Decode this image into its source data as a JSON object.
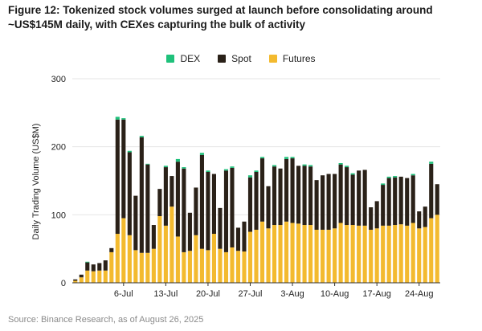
{
  "title": "Figure 12: Tokenized stock volumes surged at launch before consolidating around ~US$145M daily, with CEXes capturing the bulk of activity",
  "source": "Source: Binance Research, as of August 26, 2025",
  "colors": {
    "dex": "#1fc17b",
    "spot": "#2a2118",
    "futures": "#f3ba2f",
    "grid": "#e6e6e6",
    "axis": "#333333"
  },
  "chart_data": {
    "type": "bar",
    "stacked": true,
    "ylabel": "Daily Trading Volume (US$M)",
    "xlabel": "",
    "ylim": [
      0,
      300
    ],
    "yticks": [
      "0",
      "100",
      "200",
      "300"
    ],
    "legend": [
      "DEX",
      "Spot",
      "Futures"
    ],
    "legend_position": "top-center",
    "x_tick_labels": [
      {
        "label": "6-Jul",
        "index": 8
      },
      {
        "label": "13-Jul",
        "index": 15
      },
      {
        "label": "20-Jul",
        "index": 22
      },
      {
        "label": "27-Jul",
        "index": 29
      },
      {
        "label": "3-Aug",
        "index": 36
      },
      {
        "label": "10-Aug",
        "index": 43
      },
      {
        "label": "17-Aug",
        "index": 50
      },
      {
        "label": "24-Aug",
        "index": 57
      }
    ],
    "series": [
      {
        "name": "Futures",
        "values": [
          3,
          8,
          18,
          17,
          18,
          18,
          45,
          72,
          95,
          70,
          48,
          44,
          44,
          50,
          98,
          84,
          112,
          68,
          45,
          47,
          70,
          50,
          48,
          72,
          50,
          45,
          52,
          47,
          46,
          75,
          78,
          90,
          80,
          85,
          85,
          90,
          88,
          87,
          85,
          85,
          78,
          78,
          78,
          80,
          88,
          85,
          85,
          84,
          84,
          78,
          80,
          84,
          84,
          85,
          86,
          84,
          88,
          80,
          82,
          95,
          100
        ]
      },
      {
        "name": "Spot",
        "values": [
          2,
          4,
          12,
          10,
          11,
          15,
          6,
          168,
          145,
          122,
          80,
          170,
          130,
          35,
          40,
          86,
          45,
          110,
          123,
          56,
          70,
          138,
          115,
          88,
          60,
          120,
          117,
          34,
          44,
          80,
          85,
          93,
          62,
          86,
          83,
          92,
          95,
          85,
          87,
          86,
          73,
          80,
          82,
          80,
          86,
          85,
          74,
          81,
          82,
          33,
          40,
          60,
          70,
          70,
          70,
          70,
          70,
          25,
          30,
          80,
          45
        ]
      },
      {
        "name": "DEX",
        "values": [
          0,
          0,
          1,
          0,
          0,
          0,
          0,
          4,
          2,
          2,
          0,
          2,
          1,
          0,
          0,
          2,
          0,
          4,
          2,
          0,
          0,
          3,
          2,
          0,
          0,
          2,
          2,
          0,
          0,
          3,
          2,
          2,
          0,
          2,
          0,
          3,
          2,
          0,
          2,
          2,
          0,
          0,
          0,
          0,
          2,
          2,
          2,
          0,
          0,
          0,
          0,
          2,
          2,
          2,
          0,
          0,
          2,
          0,
          0,
          3,
          0
        ]
      }
    ]
  }
}
